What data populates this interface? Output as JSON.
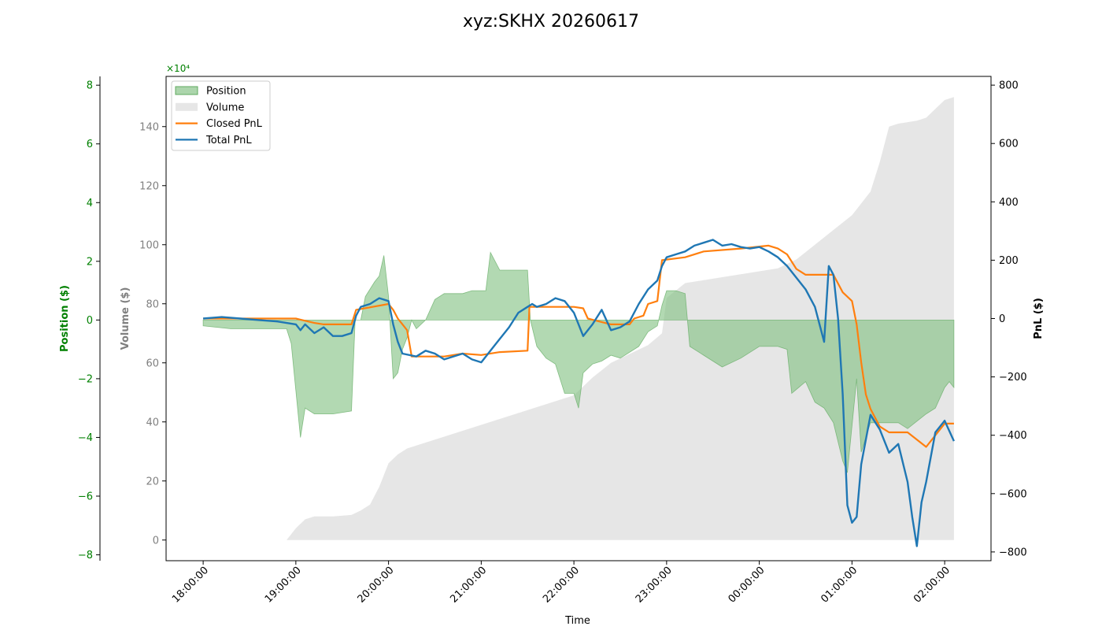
{
  "chart_data": {
    "type": "line",
    "title": "xyz:SKHX 20260617",
    "xlabel": "Time",
    "x_ticks": [
      "18:00:00",
      "19:00:00",
      "20:00:00",
      "21:00:00",
      "22:00:00",
      "23:00:00",
      "00:00:00",
      "01:00:00",
      "02:00:00"
    ],
    "x_range_hours": [
      -0.4,
      8.5
    ],
    "y_axes": {
      "position": {
        "label": "Position ($)",
        "color": "#008000",
        "offset_text": "×10⁴",
        "ylim": [
          -8.2,
          8.3
        ],
        "ticks": [
          -8,
          -6,
          -4,
          -2,
          0,
          2,
          4,
          6,
          8
        ],
        "tick_labels": [
          "−8",
          "−6",
          "−4",
          "−2",
          "0",
          "2",
          "4",
          "6",
          "8"
        ]
      },
      "volume": {
        "label": "Volume ($)",
        "color": "#808080",
        "ylim": [
          -7,
          157
        ],
        "ticks": [
          0,
          20,
          40,
          60,
          80,
          100,
          120,
          140
        ],
        "tick_labels": [
          "0",
          "20",
          "40",
          "60",
          "80",
          "100",
          "120",
          "140"
        ]
      },
      "pnl": {
        "label": "PnL ($)",
        "color": "#000000",
        "ylim": [
          -830,
          830
        ],
        "ticks": [
          -800,
          -600,
          -400,
          -200,
          0,
          200,
          400,
          600,
          800
        ],
        "tick_labels": [
          "−800",
          "−600",
          "−400",
          "−200",
          "0",
          "200",
          "400",
          "600",
          "800"
        ]
      }
    },
    "legend": {
      "placement": "upper-left",
      "entries": [
        {
          "label": "Position",
          "color": "#7fbf7f",
          "kind": "patch"
        },
        {
          "label": "Volume",
          "color": "#d9d9d9",
          "kind": "patch"
        },
        {
          "label": "Closed PnL",
          "color": "#ff7f0e",
          "kind": "line"
        },
        {
          "label": "Total PnL",
          "color": "#1f77b4",
          "kind": "line"
        }
      ]
    },
    "series": [
      {
        "name": "Position",
        "axis": "position",
        "style": "fill",
        "color": "#7fbf7f",
        "points": [
          [
            0,
            -0.2
          ],
          [
            0.3,
            -0.3
          ],
          [
            0.6,
            -0.3
          ],
          [
            0.9,
            -0.3
          ],
          [
            0.95,
            -0.8
          ],
          [
            1.05,
            -4.0
          ],
          [
            1.1,
            -3.0
          ],
          [
            1.2,
            -3.2
          ],
          [
            1.4,
            -3.2
          ],
          [
            1.6,
            -3.1
          ],
          [
            1.64,
            0
          ],
          [
            1.7,
            0
          ],
          [
            1.75,
            0.8
          ],
          [
            1.85,
            1.3
          ],
          [
            1.9,
            1.5
          ],
          [
            1.95,
            2.2
          ],
          [
            2.0,
            0.8
          ],
          [
            2.05,
            -2.0
          ],
          [
            2.1,
            -1.8
          ],
          [
            2.15,
            -1.0
          ],
          [
            2.2,
            -0.6
          ],
          [
            2.25,
            0
          ],
          [
            2.3,
            -0.3
          ],
          [
            2.4,
            0
          ],
          [
            2.5,
            0.7
          ],
          [
            2.6,
            0.9
          ],
          [
            2.8,
            0.9
          ],
          [
            2.9,
            1.0
          ],
          [
            3.05,
            1.0
          ],
          [
            3.1,
            2.3
          ],
          [
            3.2,
            1.7
          ],
          [
            3.3,
            1.7
          ],
          [
            3.5,
            1.7
          ],
          [
            3.53,
            0
          ],
          [
            3.6,
            -0.9
          ],
          [
            3.7,
            -1.3
          ],
          [
            3.8,
            -1.5
          ],
          [
            3.9,
            -2.5
          ],
          [
            4.0,
            -2.5
          ],
          [
            4.05,
            -3.0
          ],
          [
            4.1,
            -1.8
          ],
          [
            4.2,
            -1.5
          ],
          [
            4.3,
            -1.4
          ],
          [
            4.4,
            -1.2
          ],
          [
            4.5,
            -1.3
          ],
          [
            4.7,
            -0.9
          ],
          [
            4.8,
            -0.4
          ],
          [
            4.9,
            -0.2
          ],
          [
            4.95,
            0.5
          ],
          [
            5.0,
            1.0
          ],
          [
            5.1,
            1.0
          ],
          [
            5.2,
            0.9
          ],
          [
            5.25,
            -0.9
          ],
          [
            5.4,
            -1.2
          ],
          [
            5.6,
            -1.6
          ],
          [
            5.8,
            -1.3
          ],
          [
            6.0,
            -0.9
          ],
          [
            6.2,
            -0.9
          ],
          [
            6.3,
            -1.0
          ],
          [
            6.35,
            -2.5
          ],
          [
            6.5,
            -2.1
          ],
          [
            6.6,
            -2.8
          ],
          [
            6.7,
            -3.0
          ],
          [
            6.8,
            -3.5
          ],
          [
            6.9,
            -4.8
          ],
          [
            6.95,
            -5.2
          ],
          [
            7.05,
            -2.0
          ],
          [
            7.1,
            -4.5
          ],
          [
            7.2,
            -3.5
          ],
          [
            7.3,
            -3.5
          ],
          [
            7.5,
            -3.5
          ],
          [
            7.6,
            -3.7
          ],
          [
            7.8,
            -3.2
          ],
          [
            7.9,
            -3.0
          ],
          [
            8.0,
            -2.3
          ],
          [
            8.05,
            -2.1
          ],
          [
            8.1,
            -2.3
          ]
        ]
      },
      {
        "name": "Volume",
        "axis": "volume",
        "style": "fill",
        "color": "#d9d9d9",
        "points": [
          [
            0,
            0
          ],
          [
            0.9,
            0
          ],
          [
            1.0,
            4
          ],
          [
            1.1,
            7
          ],
          [
            1.2,
            8
          ],
          [
            1.4,
            8
          ],
          [
            1.6,
            8.5
          ],
          [
            1.7,
            10
          ],
          [
            1.8,
            12
          ],
          [
            1.85,
            15
          ],
          [
            1.9,
            18
          ],
          [
            2.0,
            26
          ],
          [
            2.1,
            29
          ],
          [
            2.2,
            31
          ],
          [
            2.4,
            33
          ],
          [
            2.6,
            35
          ],
          [
            2.8,
            37
          ],
          [
            3.0,
            39
          ],
          [
            3.2,
            41
          ],
          [
            3.4,
            43
          ],
          [
            3.6,
            45
          ],
          [
            3.8,
            47
          ],
          [
            4.0,
            49
          ],
          [
            4.2,
            55
          ],
          [
            4.4,
            60
          ],
          [
            4.6,
            63
          ],
          [
            4.8,
            66
          ],
          [
            4.95,
            70
          ],
          [
            5.0,
            82
          ],
          [
            5.2,
            87
          ],
          [
            5.4,
            88
          ],
          [
            5.6,
            89
          ],
          [
            5.8,
            90
          ],
          [
            6.0,
            91
          ],
          [
            6.2,
            92
          ],
          [
            6.4,
            95
          ],
          [
            6.6,
            100
          ],
          [
            6.8,
            105
          ],
          [
            7.0,
            110
          ],
          [
            7.2,
            118
          ],
          [
            7.3,
            128
          ],
          [
            7.4,
            140
          ],
          [
            7.5,
            141
          ],
          [
            7.7,
            142
          ],
          [
            7.8,
            143
          ],
          [
            7.9,
            146
          ],
          [
            8.0,
            149
          ],
          [
            8.1,
            150
          ]
        ]
      },
      {
        "name": "Closed PnL",
        "axis": "pnl",
        "style": "line",
        "color": "#ff7f0e",
        "points": [
          [
            0,
            0
          ],
          [
            0.5,
            0
          ],
          [
            1.0,
            0
          ],
          [
            1.2,
            -15
          ],
          [
            1.3,
            -20
          ],
          [
            1.6,
            -20
          ],
          [
            1.62,
            0
          ],
          [
            1.65,
            30
          ],
          [
            2.0,
            50
          ],
          [
            2.05,
            30
          ],
          [
            2.1,
            0
          ],
          [
            2.2,
            -40
          ],
          [
            2.25,
            -130
          ],
          [
            2.6,
            -130
          ],
          [
            2.8,
            -120
          ],
          [
            3.0,
            -125
          ],
          [
            3.2,
            -115
          ],
          [
            3.5,
            -110
          ],
          [
            3.52,
            40
          ],
          [
            3.8,
            40
          ],
          [
            4.0,
            40
          ],
          [
            4.1,
            35
          ],
          [
            4.15,
            0
          ],
          [
            4.4,
            -20
          ],
          [
            4.6,
            -20
          ],
          [
            4.65,
            0
          ],
          [
            4.75,
            10
          ],
          [
            4.8,
            50
          ],
          [
            4.9,
            60
          ],
          [
            4.95,
            200
          ],
          [
            5.2,
            210
          ],
          [
            5.4,
            230
          ],
          [
            5.8,
            240
          ],
          [
            6.1,
            250
          ],
          [
            6.2,
            240
          ],
          [
            6.3,
            220
          ],
          [
            6.4,
            170
          ],
          [
            6.5,
            150
          ],
          [
            6.8,
            150
          ],
          [
            6.9,
            90
          ],
          [
            7.0,
            60
          ],
          [
            7.05,
            -20
          ],
          [
            7.1,
            -150
          ],
          [
            7.15,
            -260
          ],
          [
            7.2,
            -310
          ],
          [
            7.3,
            -370
          ],
          [
            7.4,
            -390
          ],
          [
            7.6,
            -390
          ],
          [
            7.8,
            -440
          ],
          [
            7.95,
            -380
          ],
          [
            8.0,
            -360
          ],
          [
            8.1,
            -360
          ]
        ]
      },
      {
        "name": "Total PnL",
        "axis": "pnl",
        "style": "line",
        "color": "#1f77b4",
        "points": [
          [
            0,
            0
          ],
          [
            0.2,
            5
          ],
          [
            0.4,
            0
          ],
          [
            0.6,
            -5
          ],
          [
            0.8,
            -10
          ],
          [
            1.0,
            -20
          ],
          [
            1.05,
            -40
          ],
          [
            1.1,
            -20
          ],
          [
            1.2,
            -50
          ],
          [
            1.3,
            -30
          ],
          [
            1.4,
            -60
          ],
          [
            1.5,
            -60
          ],
          [
            1.6,
            -50
          ],
          [
            1.65,
            10
          ],
          [
            1.7,
            40
          ],
          [
            1.8,
            50
          ],
          [
            1.9,
            70
          ],
          [
            2.0,
            60
          ],
          [
            2.05,
            -20
          ],
          [
            2.1,
            -80
          ],
          [
            2.15,
            -120
          ],
          [
            2.3,
            -130
          ],
          [
            2.4,
            -110
          ],
          [
            2.5,
            -120
          ],
          [
            2.6,
            -140
          ],
          [
            2.8,
            -120
          ],
          [
            2.9,
            -140
          ],
          [
            3.0,
            -150
          ],
          [
            3.1,
            -110
          ],
          [
            3.2,
            -70
          ],
          [
            3.3,
            -30
          ],
          [
            3.4,
            20
          ],
          [
            3.5,
            40
          ],
          [
            3.55,
            50
          ],
          [
            3.6,
            40
          ],
          [
            3.7,
            50
          ],
          [
            3.8,
            70
          ],
          [
            3.9,
            60
          ],
          [
            4.0,
            20
          ],
          [
            4.1,
            -60
          ],
          [
            4.2,
            -20
          ],
          [
            4.3,
            30
          ],
          [
            4.4,
            -40
          ],
          [
            4.5,
            -30
          ],
          [
            4.6,
            -10
          ],
          [
            4.7,
            50
          ],
          [
            4.8,
            100
          ],
          [
            4.9,
            130
          ],
          [
            4.95,
            180
          ],
          [
            5.0,
            210
          ],
          [
            5.1,
            220
          ],
          [
            5.2,
            230
          ],
          [
            5.3,
            250
          ],
          [
            5.4,
            260
          ],
          [
            5.5,
            270
          ],
          [
            5.6,
            250
          ],
          [
            5.7,
            255
          ],
          [
            5.8,
            245
          ],
          [
            5.9,
            240
          ],
          [
            6.0,
            245
          ],
          [
            6.1,
            230
          ],
          [
            6.2,
            210
          ],
          [
            6.3,
            180
          ],
          [
            6.4,
            140
          ],
          [
            6.5,
            100
          ],
          [
            6.6,
            40
          ],
          [
            6.7,
            -80
          ],
          [
            6.75,
            180
          ],
          [
            6.8,
            150
          ],
          [
            6.85,
            0
          ],
          [
            6.9,
            -260
          ],
          [
            6.95,
            -640
          ],
          [
            7.0,
            -700
          ],
          [
            7.05,
            -680
          ],
          [
            7.1,
            -500
          ],
          [
            7.2,
            -330
          ],
          [
            7.3,
            -380
          ],
          [
            7.4,
            -460
          ],
          [
            7.5,
            -430
          ],
          [
            7.6,
            -560
          ],
          [
            7.65,
            -680
          ],
          [
            7.7,
            -780
          ],
          [
            7.75,
            -630
          ],
          [
            7.8,
            -560
          ],
          [
            7.9,
            -390
          ],
          [
            8.0,
            -350
          ],
          [
            8.1,
            -420
          ]
        ]
      }
    ]
  }
}
